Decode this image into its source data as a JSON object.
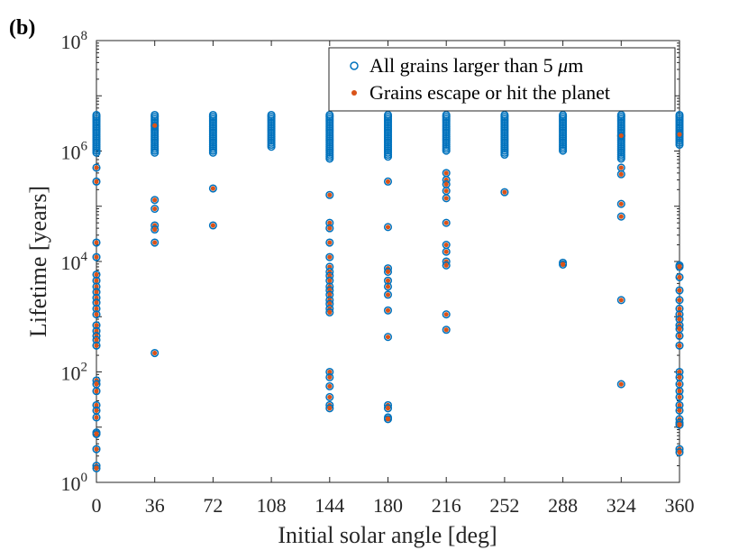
{
  "panel_label": "(b)",
  "colors": {
    "all_grains": "#0072BD",
    "escaped": "#D95319",
    "axis": "#262626"
  },
  "chart_data": {
    "type": "scatter",
    "xlabel": "Initial solar angle [deg]",
    "ylabel": "Lifetime [years]",
    "xlim": [
      0,
      360
    ],
    "ylim": [
      1,
      100000000
    ],
    "yscale": "log",
    "xticks": [
      0,
      36,
      72,
      108,
      144,
      180,
      216,
      252,
      288,
      324,
      360
    ],
    "yticks": [
      {
        "value": 1,
        "base": "10",
        "exp": "0"
      },
      {
        "value": 100,
        "base": "10",
        "exp": "2"
      },
      {
        "value": 10000,
        "base": "10",
        "exp": "4"
      },
      {
        "value": 1000000,
        "base": "10",
        "exp": "6"
      },
      {
        "value": 100000000,
        "base": "10",
        "exp": "8"
      }
    ],
    "legend_position": "top-right",
    "series": [
      {
        "name": "All grains larger than 5 μm",
        "label_prefix": "All grains larger than 5 ",
        "label_mu": "μ",
        "label_unit": "m",
        "marker": "open-circle",
        "color": "#0072BD",
        "band": {
          "angles": [
            0,
            36,
            72,
            108,
            144,
            180,
            216,
            252,
            288,
            324,
            360
          ],
          "min": [
            900000,
            900000,
            900000,
            1150000,
            700000,
            750000,
            1000000,
            850000,
            1000000,
            700000,
            1200000
          ],
          "max": [
            4500000,
            4500000,
            4500000,
            4500000,
            4500000,
            4500000,
            4500000,
            4500000,
            4500000,
            4500000,
            4500000
          ]
        }
      },
      {
        "name": "Grains escape or hit the planet",
        "marker": "dot",
        "color": "#D95319",
        "points": [
          [
            0,
            500000
          ],
          [
            0,
            280000
          ],
          [
            0,
            22000
          ],
          [
            0,
            12000
          ],
          [
            0,
            5800
          ],
          [
            0,
            4500
          ],
          [
            0,
            3500
          ],
          [
            0,
            2800
          ],
          [
            0,
            2200
          ],
          [
            0,
            1800
          ],
          [
            0,
            1400
          ],
          [
            0,
            1100
          ],
          [
            0,
            700
          ],
          [
            0,
            550
          ],
          [
            0,
            450
          ],
          [
            0,
            380
          ],
          [
            0,
            300
          ],
          [
            0,
            70
          ],
          [
            0,
            60
          ],
          [
            0,
            45
          ],
          [
            0,
            25
          ],
          [
            0,
            20
          ],
          [
            0,
            15
          ],
          [
            0,
            8
          ],
          [
            0,
            7.5
          ],
          [
            0,
            4
          ],
          [
            0,
            2
          ],
          [
            0,
            1.8
          ],
          [
            36,
            2900000
          ],
          [
            36,
            130000
          ],
          [
            36,
            90000
          ],
          [
            36,
            45000
          ],
          [
            36,
            38000
          ],
          [
            36,
            22000
          ],
          [
            36,
            220
          ],
          [
            72,
            210000
          ],
          [
            72,
            45000
          ],
          [
            144,
            160000
          ],
          [
            144,
            50000
          ],
          [
            144,
            40000
          ],
          [
            144,
            22000
          ],
          [
            144,
            12000
          ],
          [
            144,
            8000
          ],
          [
            144,
            6500
          ],
          [
            144,
            5500
          ],
          [
            144,
            4500
          ],
          [
            144,
            3500
          ],
          [
            144,
            3000
          ],
          [
            144,
            2500
          ],
          [
            144,
            2000
          ],
          [
            144,
            1700
          ],
          [
            144,
            1400
          ],
          [
            144,
            1200
          ],
          [
            144,
            100
          ],
          [
            144,
            80
          ],
          [
            144,
            55
          ],
          [
            144,
            35
          ],
          [
            144,
            25
          ],
          [
            144,
            22
          ],
          [
            180,
            280000
          ],
          [
            180,
            42000
          ],
          [
            180,
            7500
          ],
          [
            180,
            6500
          ],
          [
            180,
            4500
          ],
          [
            180,
            3500
          ],
          [
            180,
            2500
          ],
          [
            180,
            1300
          ],
          [
            180,
            430
          ],
          [
            180,
            25
          ],
          [
            180,
            22
          ],
          [
            180,
            15
          ],
          [
            180,
            14
          ],
          [
            216,
            400000
          ],
          [
            216,
            300000
          ],
          [
            216,
            250000
          ],
          [
            216,
            190000
          ],
          [
            216,
            140000
          ],
          [
            216,
            50000
          ],
          [
            216,
            20000
          ],
          [
            216,
            15000
          ],
          [
            216,
            10000
          ],
          [
            216,
            8500
          ],
          [
            216,
            1100
          ],
          [
            216,
            580
          ],
          [
            252,
            180000
          ],
          [
            288,
            9500
          ],
          [
            288,
            8800
          ],
          [
            324,
            1900000
          ],
          [
            324,
            500000
          ],
          [
            324,
            380000
          ],
          [
            324,
            110000
          ],
          [
            324,
            65000
          ],
          [
            324,
            2000
          ],
          [
            324,
            60
          ],
          [
            360,
            2000000
          ],
          [
            360,
            8500
          ],
          [
            360,
            8000
          ],
          [
            360,
            5200
          ],
          [
            360,
            3000
          ],
          [
            360,
            2000
          ],
          [
            360,
            1400
          ],
          [
            360,
            1100
          ],
          [
            360,
            900
          ],
          [
            360,
            700
          ],
          [
            360,
            600
          ],
          [
            360,
            450
          ],
          [
            360,
            300
          ],
          [
            360,
            100
          ],
          [
            360,
            80
          ],
          [
            360,
            60
          ],
          [
            360,
            45
          ],
          [
            360,
            35
          ],
          [
            360,
            25
          ],
          [
            360,
            20
          ],
          [
            360,
            14
          ],
          [
            360,
            12
          ],
          [
            360,
            11
          ],
          [
            360,
            4
          ],
          [
            360,
            3.5
          ]
        ]
      }
    ]
  }
}
